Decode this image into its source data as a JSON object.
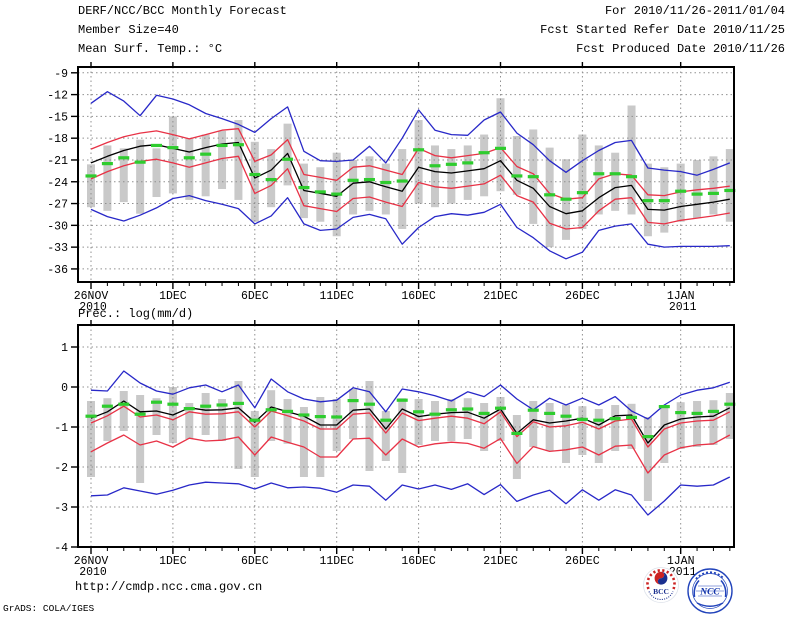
{
  "header": {
    "title": "DERF/NCC/BCC Monthly Forecast",
    "member_size": "Member Size=40",
    "temp_label": "Mean Surf. Temp.: °C",
    "period": "For 2010/11/26-2011/01/04",
    "started": "Fcst Started Refer Date 2010/11/25",
    "produced": "Fcst Produced Date 2010/11/26"
  },
  "prec_label": "Prec.: log(mm/d)",
  "footer": {
    "url": "http://cmdp.ncc.cma.gov.cn",
    "credit": "GrADS: COLA/IGES",
    "logo_bcc": "BCC",
    "logo_ncc": "NCC"
  },
  "colors": {
    "blue": "#2828c8",
    "red": "#e83246",
    "green": "#2ecc2e",
    "bar": "#c9c9c9",
    "grid": "#909090",
    "black": "#000000"
  },
  "chart_data": [
    {
      "name": "surface-temperature",
      "type": "line",
      "title": "Mean Surf. Temp.: °C",
      "ylabel": "°C",
      "grid": true,
      "legend": "none",
      "ylim": [
        -37.8,
        -8.2
      ],
      "yticks": [
        -9,
        -12,
        -15,
        -18,
        -21,
        -24,
        -27,
        -30,
        -33,
        -36
      ],
      "ytick_labels": [
        "-9",
        "-12",
        "-15",
        "-18",
        "-21",
        "-24",
        "-27",
        "-30",
        "-33",
        "-36"
      ],
      "x_tick_labels": [
        "26NOV",
        "1DEC",
        "6DEC",
        "11DEC",
        "16DEC",
        "21DEC",
        "26DEC",
        "1JAN"
      ],
      "x_tick_days": [
        1,
        6,
        11,
        16,
        21,
        26,
        31,
        37
      ],
      "x_year_labels": [
        {
          "day": 1,
          "text": "2010"
        },
        {
          "day": 37,
          "text": "2011"
        }
      ],
      "num_days": 40,
      "series": {
        "blue_upper": [
          -13.2,
          -11.6,
          -12.9,
          -14.9,
          -12.1,
          -12.6,
          -13.4,
          -14.6,
          -15.3,
          -16.1,
          -17.2,
          -15.3,
          -13.7,
          -19.8,
          -21.1,
          -21.2,
          -21.0,
          -19.1,
          -21.4,
          -18.0,
          -14.1,
          -16.9,
          -17.5,
          -17.6,
          -15.5,
          -14.4,
          -17.3,
          -18.9,
          -21.1,
          -22.7,
          -21.1,
          -19.7,
          -18.6,
          -18.3,
          -22.1,
          -22.4,
          -22.6,
          -23.1,
          -22.3,
          -21.4
        ],
        "red_upper": [
          -19.5,
          -18.6,
          -17.8,
          -17.3,
          -17.0,
          -17.5,
          -18.1,
          -17.5,
          -16.9,
          -16.7,
          -21.2,
          -20.3,
          -18.2,
          -23.0,
          -23.4,
          -23.8,
          -22.0,
          -21.8,
          -22.4,
          -23.0,
          -19.4,
          -20.4,
          -20.7,
          -20.4,
          -20.1,
          -19.3,
          -21.9,
          -22.9,
          -25.6,
          -26.4,
          -26.2,
          -23.6,
          -22.9,
          -23.1,
          -25.8,
          -25.9,
          -25.4,
          -25.1,
          -24.9,
          -24.6
        ],
        "mean": [
          -21.4,
          -20.5,
          -19.7,
          -19.1,
          -18.9,
          -19.4,
          -19.9,
          -19.3,
          -18.8,
          -18.6,
          -23.5,
          -22.4,
          -20.1,
          -25.2,
          -25.6,
          -26.0,
          -24.2,
          -24.0,
          -24.7,
          -25.3,
          -22.0,
          -22.6,
          -22.8,
          -22.5,
          -22.2,
          -21.1,
          -23.8,
          -24.9,
          -27.4,
          -28.4,
          -28.0,
          -26.2,
          -24.8,
          -24.5,
          -27.8,
          -27.9,
          -27.4,
          -27.1,
          -26.8,
          -26.4
        ],
        "red_lower": [
          -23.6,
          -22.6,
          -21.8,
          -21.2,
          -20.9,
          -21.4,
          -22.0,
          -21.4,
          -20.8,
          -20.5,
          -25.6,
          -24.5,
          -22.2,
          -27.3,
          -27.7,
          -28.1,
          -26.3,
          -26.1,
          -26.8,
          -27.4,
          -24.1,
          -24.7,
          -24.9,
          -24.6,
          -24.3,
          -23.1,
          -25.9,
          -26.8,
          -29.7,
          -30.5,
          -30.3,
          -28.0,
          -26.4,
          -26.2,
          -29.6,
          -29.8,
          -29.3,
          -29.0,
          -28.7,
          -28.3
        ],
        "blue_lower": [
          -27.8,
          -28.8,
          -29.4,
          -28.6,
          -27.6,
          -26.3,
          -25.9,
          -26.6,
          -27.1,
          -27.7,
          -29.8,
          -28.7,
          -26.2,
          -29.8,
          -30.7,
          -30.5,
          -28.9,
          -28.5,
          -29.1,
          -32.6,
          -30.3,
          -28.8,
          -28.4,
          -28.6,
          -28.2,
          -27.1,
          -30.3,
          -31.7,
          -33.5,
          -34.6,
          -33.7,
          -30.7,
          -30.1,
          -29.8,
          -32.6,
          -33.0,
          -32.9,
          -32.9,
          -32.9,
          -32.8
        ],
        "green_dashes": [
          -23.2,
          -21.5,
          -20.7,
          -21.3,
          -19.0,
          -19.3,
          -20.7,
          -20.2,
          -19.0,
          -18.9,
          -23.0,
          -23.7,
          -20.9,
          -24.8,
          -25.4,
          -25.7,
          -23.8,
          -23.7,
          -24.1,
          -23.9,
          -19.6,
          -21.8,
          -21.6,
          -21.4,
          -20.0,
          -19.4,
          -23.2,
          -23.3,
          -25.8,
          -26.4,
          -25.5,
          -22.9,
          -22.9,
          -23.3,
          -26.6,
          -26.6,
          -25.3,
          -25.7,
          -25.6,
          -25.2
        ]
      },
      "bars": {
        "low": [
          -27.5,
          -28.0,
          -26.8,
          -28.4,
          -26.1,
          -25.6,
          -26.5,
          -26.0,
          -25.0,
          -26.5,
          -29.5,
          -27.5,
          -24.5,
          -29.0,
          -29.5,
          -31.5,
          -28.5,
          -28.0,
          -28.5,
          -30.5,
          -27.0,
          -27.5,
          -27.0,
          -26.5,
          -26.0,
          -25.3,
          -25.8,
          -29.8,
          -33.0,
          -32.0,
          -30.5,
          -28.5,
          -28.0,
          -28.5,
          -31.5,
          -31.0,
          -29.5,
          -29.0,
          -28.5,
          -29.5
        ],
        "high": [
          -21.6,
          -19.0,
          -19.4,
          -18.2,
          -19.4,
          -15.0,
          -18.0,
          -17.5,
          -17.0,
          -15.5,
          -18.5,
          -19.5,
          -16.0,
          -21.5,
          -22.0,
          -20.0,
          -21.0,
          -20.5,
          -21.5,
          -19.5,
          -15.5,
          -19.0,
          -19.5,
          -19.0,
          -17.5,
          -12.5,
          -17.7,
          -16.8,
          -19.3,
          -20.9,
          -17.5,
          -19.0,
          -20.0,
          -13.5,
          -21.5,
          -22.0,
          -21.5,
          -21.0,
          -20.5,
          -19.5
        ]
      }
    },
    {
      "name": "precipitation",
      "type": "line",
      "title": "Prec.: log(mm/d)",
      "ylabel": "log(mm/d)",
      "grid": true,
      "legend": "none",
      "ylim": [
        -4.0,
        1.55
      ],
      "yticks": [
        1,
        0,
        -1,
        -2,
        -3,
        -4
      ],
      "ytick_labels": [
        "1",
        "0",
        "-1",
        "-2",
        "-3",
        "-4"
      ],
      "x_tick_labels": [
        "26NOV",
        "1DEC",
        "6DEC",
        "11DEC",
        "16DEC",
        "21DEC",
        "26DEC",
        "1JAN"
      ],
      "x_tick_days": [
        1,
        6,
        11,
        16,
        21,
        26,
        31,
        37
      ],
      "x_year_labels": [
        {
          "day": 1,
          "text": "2010"
        },
        {
          "day": 37,
          "text": "2011"
        }
      ],
      "num_days": 40,
      "series": {
        "blue_upper": [
          -0.08,
          -0.1,
          0.4,
          0.1,
          -0.1,
          -0.18,
          -0.02,
          0.05,
          -0.12,
          0.05,
          -0.52,
          0.2,
          -0.12,
          -0.3,
          -0.37,
          -0.33,
          -0.02,
          -0.12,
          -0.62,
          -0.05,
          -0.12,
          -0.22,
          -0.35,
          -0.12,
          -0.24,
          0.05,
          -0.3,
          -0.57,
          -0.28,
          -0.45,
          -0.28,
          -0.45,
          -0.24,
          -0.6,
          -0.8,
          -0.45,
          -0.2,
          -0.08,
          -0.02,
          0.12
        ],
        "red_upper": [
          -0.9,
          -0.72,
          -0.48,
          -0.75,
          -0.7,
          -0.82,
          -0.62,
          -0.68,
          -0.67,
          -0.62,
          -1.0,
          -0.6,
          -0.72,
          -0.85,
          -1.05,
          -1.05,
          -0.68,
          -0.65,
          -1.15,
          -0.65,
          -0.84,
          -0.78,
          -0.73,
          -0.78,
          -0.92,
          -0.62,
          -1.24,
          -0.87,
          -1.0,
          -0.97,
          -0.88,
          -1.05,
          -0.85,
          -0.8,
          -1.5,
          -1.05,
          -0.9,
          -0.85,
          -0.83,
          -0.62
        ],
        "mean": [
          -0.78,
          -0.62,
          -0.35,
          -0.62,
          -0.6,
          -0.7,
          -0.52,
          -0.58,
          -0.57,
          -0.52,
          -0.88,
          -0.5,
          -0.62,
          -0.73,
          -0.95,
          -0.95,
          -0.58,
          -0.55,
          -1.05,
          -0.55,
          -0.74,
          -0.68,
          -0.64,
          -0.63,
          -0.78,
          -0.55,
          -1.16,
          -0.82,
          -0.9,
          -0.85,
          -0.78,
          -0.95,
          -0.72,
          -0.7,
          -1.4,
          -0.95,
          -0.8,
          -0.75,
          -0.73,
          -0.52
        ],
        "red_lower": [
          -1.62,
          -1.4,
          -1.2,
          -1.45,
          -1.35,
          -1.5,
          -1.28,
          -1.35,
          -1.33,
          -1.25,
          -1.7,
          -1.25,
          -1.38,
          -1.5,
          -1.75,
          -1.75,
          -1.3,
          -1.28,
          -1.7,
          -1.3,
          -1.5,
          -1.42,
          -1.38,
          -1.41,
          -1.53,
          -1.29,
          -1.91,
          -1.49,
          -1.61,
          -1.57,
          -1.5,
          -1.7,
          -1.48,
          -1.45,
          -2.15,
          -1.7,
          -1.52,
          -1.45,
          -1.42,
          -1.2
        ],
        "blue_lower": [
          -2.72,
          -2.7,
          -2.52,
          -2.6,
          -2.68,
          -2.58,
          -2.45,
          -2.38,
          -2.4,
          -2.42,
          -2.55,
          -2.4,
          -2.52,
          -2.5,
          -2.53,
          -2.63,
          -2.45,
          -2.48,
          -2.83,
          -2.45,
          -2.55,
          -2.45,
          -2.56,
          -2.42,
          -2.69,
          -2.44,
          -2.86,
          -2.7,
          -2.58,
          -2.92,
          -2.57,
          -2.83,
          -2.57,
          -2.7,
          -3.2,
          -2.85,
          -2.45,
          -2.48,
          -2.45,
          -2.25
        ],
        "green_dashes": [
          -0.73,
          -0.48,
          -0.43,
          -0.68,
          -0.38,
          -0.43,
          -0.54,
          -0.48,
          -0.45,
          -0.41,
          -0.83,
          -0.57,
          -0.61,
          -0.7,
          -0.74,
          -0.75,
          -0.34,
          -0.43,
          -0.83,
          -0.33,
          -0.62,
          -0.68,
          -0.57,
          -0.55,
          -0.66,
          -0.53,
          -1.16,
          -0.58,
          -0.66,
          -0.73,
          -0.81,
          -0.83,
          -0.79,
          -0.76,
          -1.24,
          -0.49,
          -0.64,
          -0.66,
          -0.61,
          -0.43
        ]
      },
      "bars": {
        "low": [
          -2.25,
          -1.35,
          -1.1,
          -2.4,
          -1.2,
          -1.4,
          -1.3,
          -1.2,
          -1.35,
          -2.05,
          -2.25,
          -1.35,
          -1.42,
          -2.25,
          -2.25,
          -1.6,
          -1.3,
          -2.1,
          -1.85,
          -2.15,
          -1.45,
          -1.35,
          -1.35,
          -1.3,
          -1.6,
          -1.35,
          -2.3,
          -1.5,
          -1.6,
          -1.9,
          -1.7,
          -1.9,
          -1.6,
          -1.55,
          -2.85,
          -1.9,
          -1.55,
          -1.5,
          -1.45,
          -1.3
        ],
        "high": [
          -0.35,
          -0.28,
          -0.1,
          -0.2,
          -0.28,
          0.0,
          -0.4,
          -0.15,
          -0.3,
          0.15,
          -0.6,
          -0.08,
          -0.3,
          -0.5,
          -0.25,
          -0.3,
          -0.05,
          0.15,
          -0.6,
          -0.28,
          -0.3,
          -0.35,
          -0.3,
          -0.28,
          -0.4,
          -0.25,
          -0.7,
          -0.35,
          -0.4,
          -0.45,
          -0.48,
          -0.55,
          -0.45,
          -0.42,
          -0.75,
          -0.5,
          -0.38,
          -0.35,
          -0.33,
          -0.15
        ]
      }
    }
  ]
}
